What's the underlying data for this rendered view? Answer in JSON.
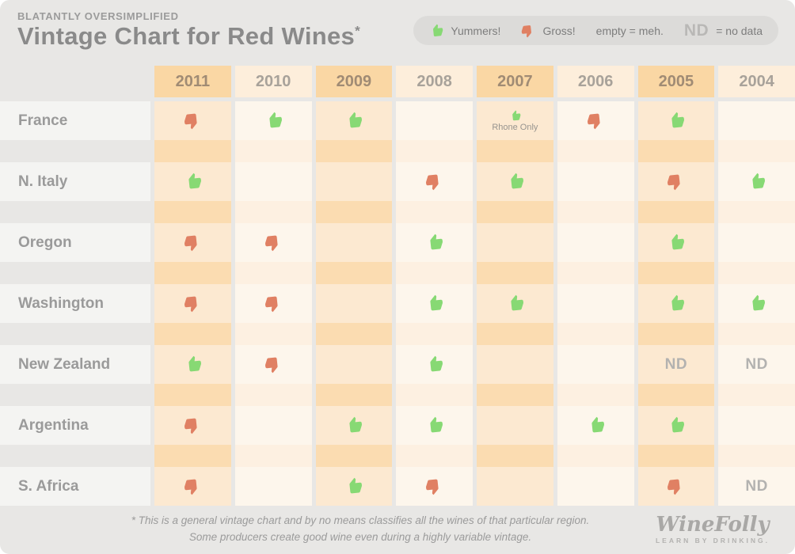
{
  "header": {
    "kicker": "BLATANTLY OVERSIMPLIFIED",
    "title": "Vintage Chart for Red Wines",
    "asterisk": "*"
  },
  "legend": {
    "yummers": "Yummers!",
    "gross": "Gross!",
    "meh": "empty = meh.",
    "nd": "ND",
    "nd_eq": "= no data"
  },
  "chart_data": {
    "type": "table",
    "title": "Vintage Chart for Red Wines",
    "columns": [
      "2011",
      "2010",
      "2009",
      "2008",
      "2007",
      "2006",
      "2005",
      "2004"
    ],
    "rating_legend": {
      "up": "Yummers!",
      "down": "Gross!",
      "meh": "empty = meh.",
      "nd": "no data"
    },
    "nd_label": "ND",
    "rows": [
      {
        "region": "France",
        "ratings": [
          "down",
          "up",
          "up",
          "meh",
          "up",
          "down",
          "up",
          "meh"
        ],
        "notes": {
          "2007": "Rhone Only"
        }
      },
      {
        "region": "N. Italy",
        "ratings": [
          "up",
          "meh",
          "meh",
          "down",
          "up",
          "meh",
          "down",
          "up"
        ]
      },
      {
        "region": "Oregon",
        "ratings": [
          "down",
          "down",
          "meh",
          "up",
          "meh",
          "meh",
          "up",
          "meh"
        ]
      },
      {
        "region": "Washington",
        "ratings": [
          "down",
          "down",
          "meh",
          "up",
          "up",
          "meh",
          "up",
          "up"
        ]
      },
      {
        "region": "New Zealand",
        "ratings": [
          "up",
          "down",
          "meh",
          "up",
          "meh",
          "meh",
          "nd",
          "nd"
        ]
      },
      {
        "region": "Argentina",
        "ratings": [
          "down",
          "meh",
          "up",
          "up",
          "meh",
          "up",
          "up",
          "meh"
        ]
      },
      {
        "region": "S. Africa",
        "ratings": [
          "down",
          "meh",
          "up",
          "down",
          "meh",
          "meh",
          "down",
          "nd"
        ]
      }
    ]
  },
  "footnote": {
    "line1": "* This is a general vintage chart and by no means classifies all the wines of that particular region.",
    "line2": "Some producers create good wine even during a highly variable vintage."
  },
  "logo": {
    "brand": "WineFolly",
    "tagline": "LEARN BY DRINKING."
  },
  "colors": {
    "up": "#87d974",
    "down": "#e08063",
    "header_orange": "#fad7a4",
    "header_cream": "#fdeedb",
    "row_orange": "#fce9d1",
    "row_cream": "#fdf6ec",
    "spacer_orange": "#fbdcb1",
    "spacer_cream": "#fdf0e1",
    "page_bg": "#e8e7e5"
  }
}
